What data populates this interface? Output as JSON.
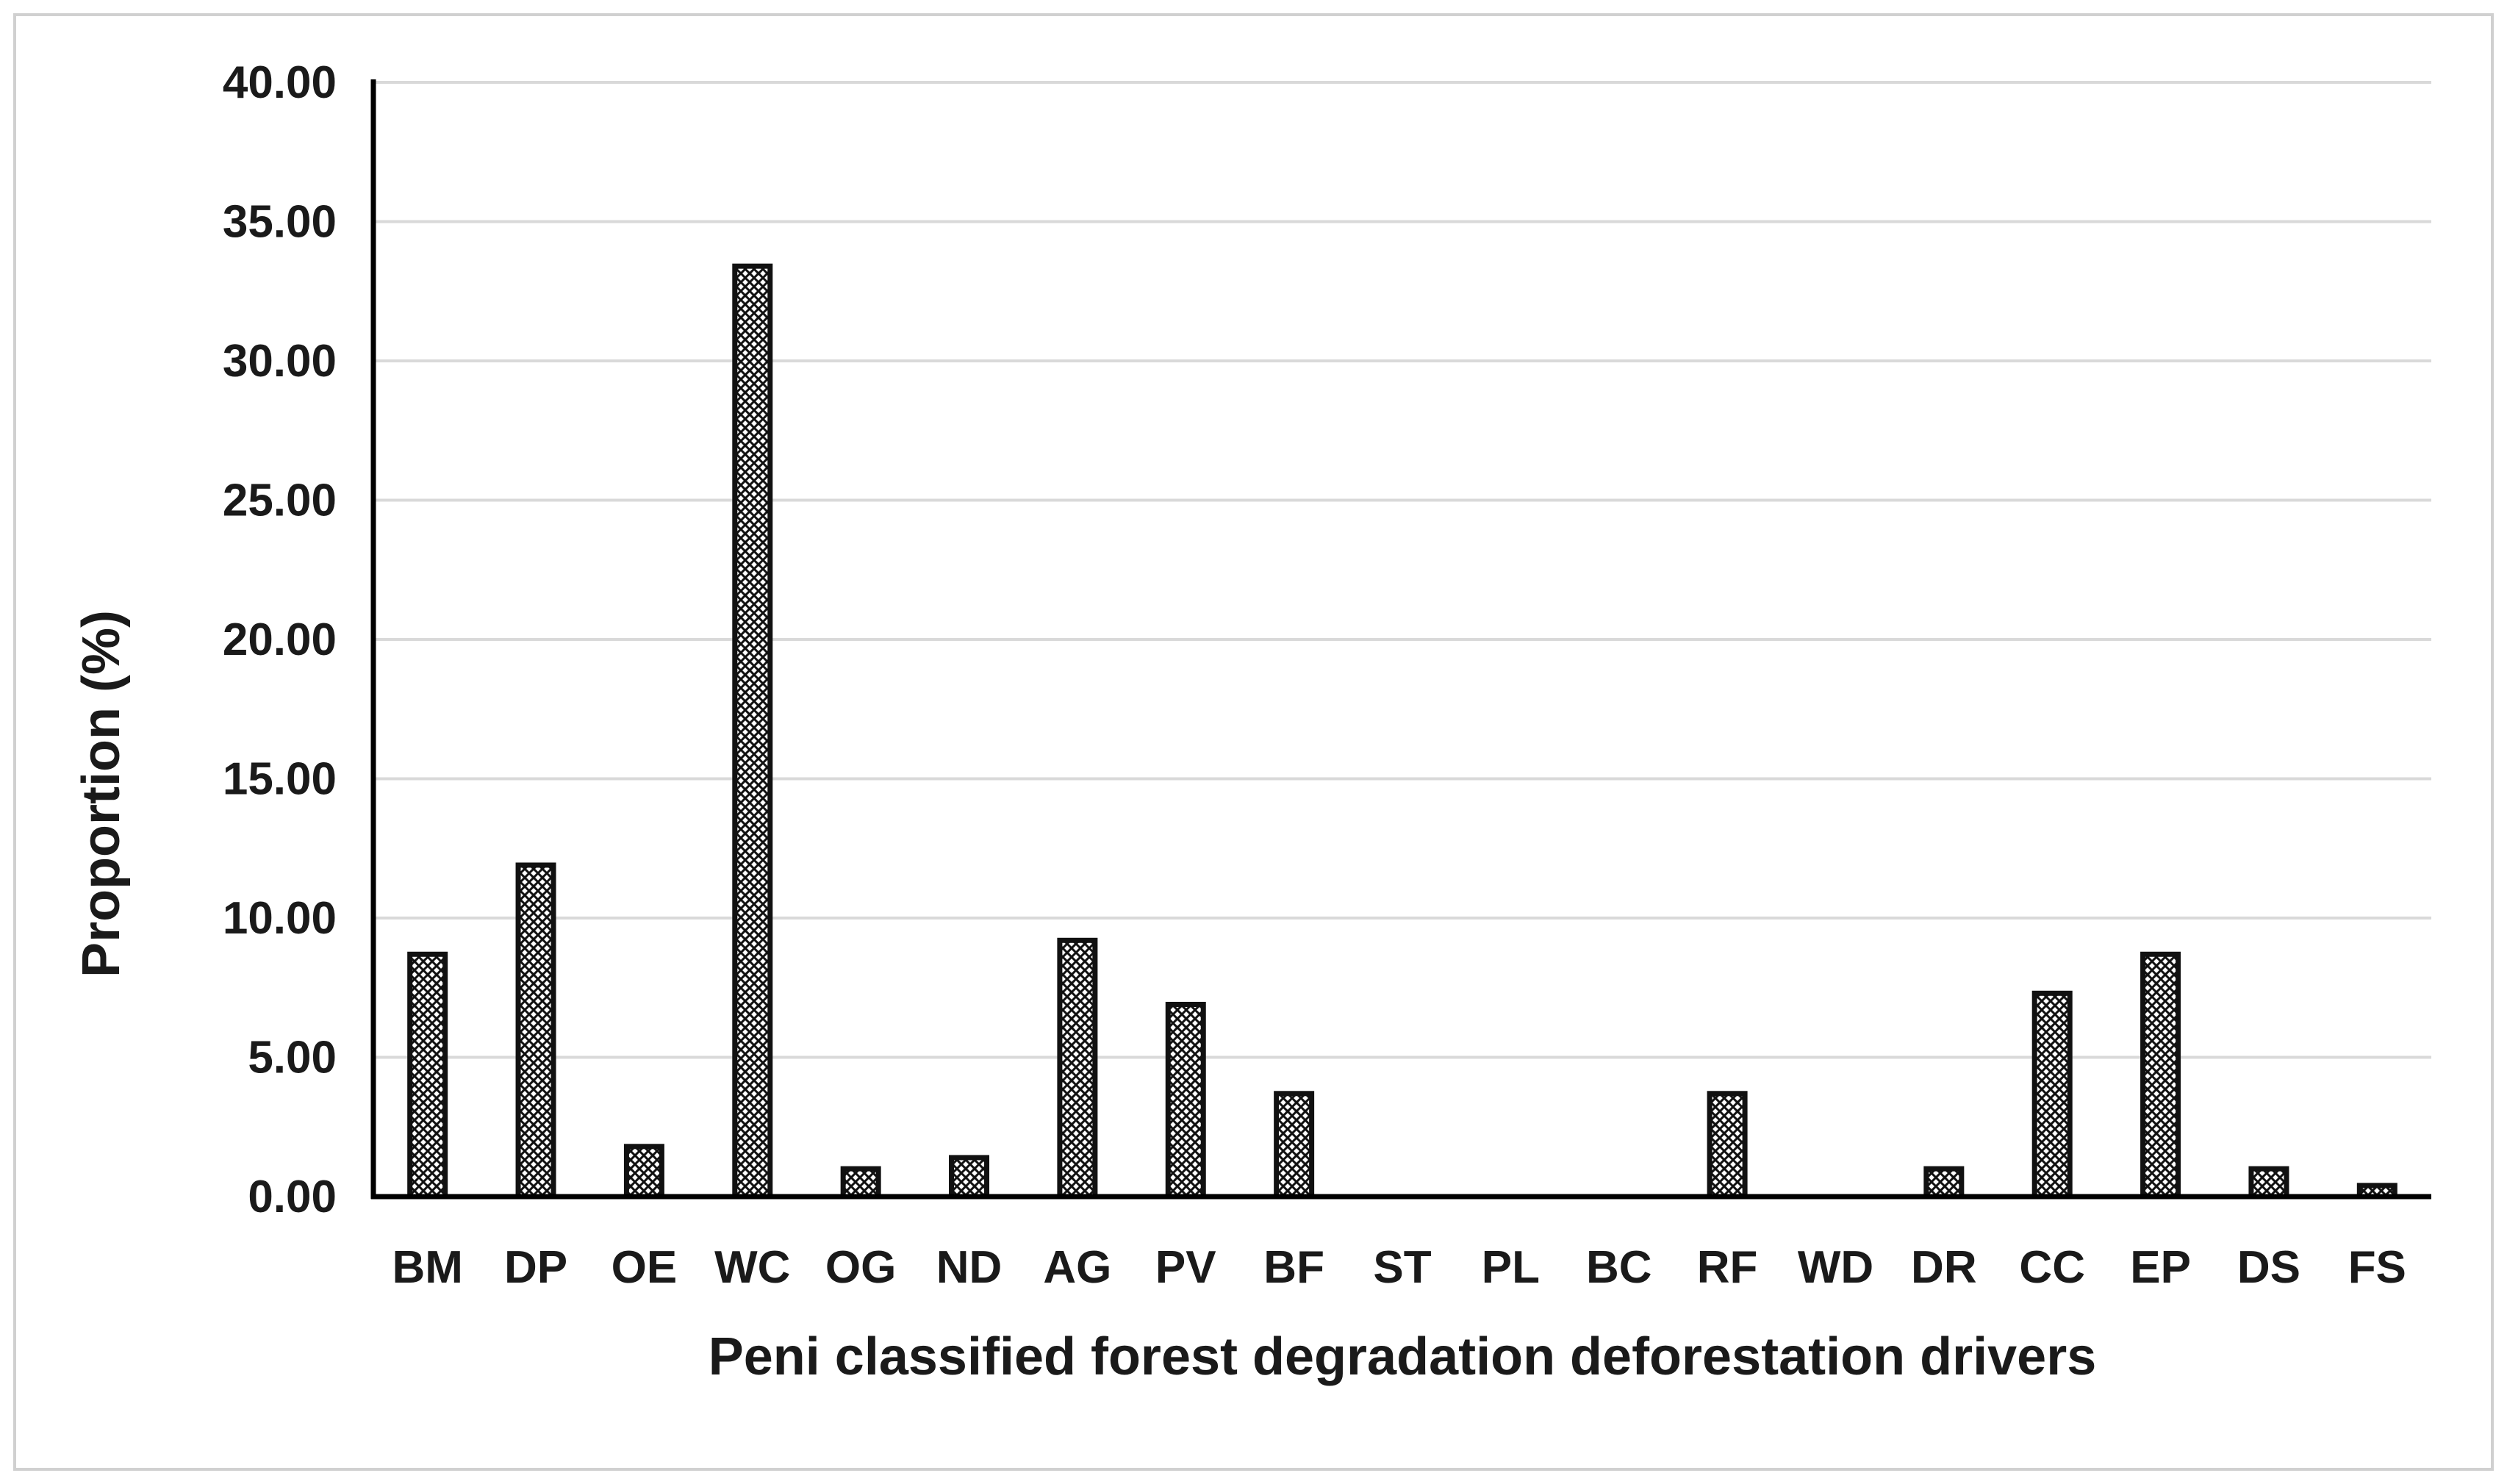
{
  "chart_data": {
    "type": "bar",
    "title": "",
    "xlabel": "Peni classified forest degradation deforestation drivers",
    "ylabel": "Proportion (%)",
    "ylim": [
      0,
      40
    ],
    "yticks": [
      "0.00",
      "5.00",
      "10.00",
      "15.00",
      "20.00",
      "25.00",
      "30.00",
      "35.00",
      "40.00"
    ],
    "grid": true,
    "legend": "none",
    "categories": [
      "BM",
      "DP",
      "OE",
      "WC",
      "OG",
      "ND",
      "AG",
      "PV",
      "BF",
      "ST",
      "PL",
      "BC",
      "RF",
      "WD",
      "DR",
      "CC",
      "EP",
      "DS",
      "FS"
    ],
    "values": [
      8.7,
      11.9,
      1.8,
      33.4,
      1.0,
      1.4,
      9.2,
      6.9,
      3.7,
      0,
      0,
      0,
      3.7,
      0,
      1.0,
      7.3,
      8.7,
      1.0,
      0.4
    ],
    "bar_fill": "cross-hatch pattern",
    "bar_color": "#111111",
    "grid_color": "#d9d9d9"
  }
}
